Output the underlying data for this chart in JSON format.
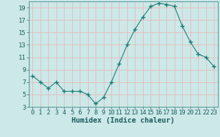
{
  "x": [
    0,
    1,
    2,
    3,
    4,
    5,
    6,
    7,
    8,
    9,
    10,
    11,
    12,
    13,
    14,
    15,
    16,
    17,
    18,
    19,
    20,
    21,
    22,
    23
  ],
  "y": [
    8,
    7,
    6,
    7,
    5.5,
    5.5,
    5.5,
    5,
    3.5,
    4.5,
    7,
    10,
    13,
    15.5,
    17.5,
    19.2,
    19.7,
    19.5,
    19.2,
    16,
    13.5,
    11.5,
    11,
    9.5
  ],
  "line_color": "#1a7a6e",
  "marker": "+",
  "marker_size": 4,
  "bg_color": "#cce8e8",
  "grid_color": "#e8b8b8",
  "xlabel": "Humidex (Indice chaleur)",
  "ylim": [
    3,
    20
  ],
  "xlim": [
    -0.5,
    23.5
  ],
  "yticks": [
    3,
    5,
    7,
    9,
    11,
    13,
    15,
    17,
    19
  ],
  "xticks": [
    0,
    1,
    2,
    3,
    4,
    5,
    6,
    7,
    8,
    9,
    10,
    11,
    12,
    13,
    14,
    15,
    16,
    17,
    18,
    19,
    20,
    21,
    22,
    23
  ],
  "xlabel_fontsize": 7.5,
  "tick_fontsize": 6.5
}
